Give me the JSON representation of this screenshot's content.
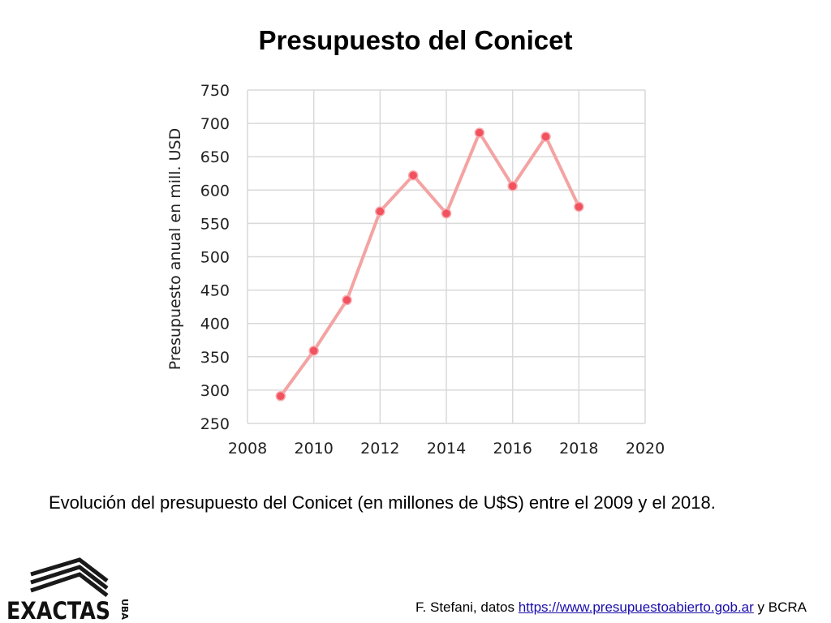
{
  "title": "Presupuesto del Conicet",
  "caption": "Evolución del presupuesto del Conicet (en millones de U$S) entre el 2009 y el 2018.",
  "footer": {
    "prefix": "F. Stefani, datos ",
    "link": "https://www.presupuestoabierto.gob.ar",
    "suffix": " y BCRA"
  },
  "logo": {
    "text": "EXACTAS",
    "side_text": "UBA"
  },
  "colors": {
    "line": "#f4a3a3",
    "marker": "#f2525e",
    "grid": "#d9d9d9"
  },
  "chart_data": {
    "type": "scatter",
    "xlabel": "",
    "ylabel": "Presupuesto anual en mill. USD",
    "xlim": [
      2008,
      2020
    ],
    "ylim": [
      250,
      750
    ],
    "xticks": [
      2008,
      2010,
      2012,
      2014,
      2016,
      2018,
      2020
    ],
    "yticks": [
      250,
      300,
      350,
      400,
      450,
      500,
      550,
      600,
      650,
      700,
      750
    ],
    "grid": true,
    "legend": "none",
    "series": [
      {
        "x": [
          2009,
          2010,
          2011,
          2012,
          2013,
          2014,
          2015,
          2016,
          2017,
          2018
        ],
        "y": [
          291,
          359,
          435,
          568,
          622,
          565,
          686,
          606,
          680,
          575
        ]
      }
    ]
  }
}
